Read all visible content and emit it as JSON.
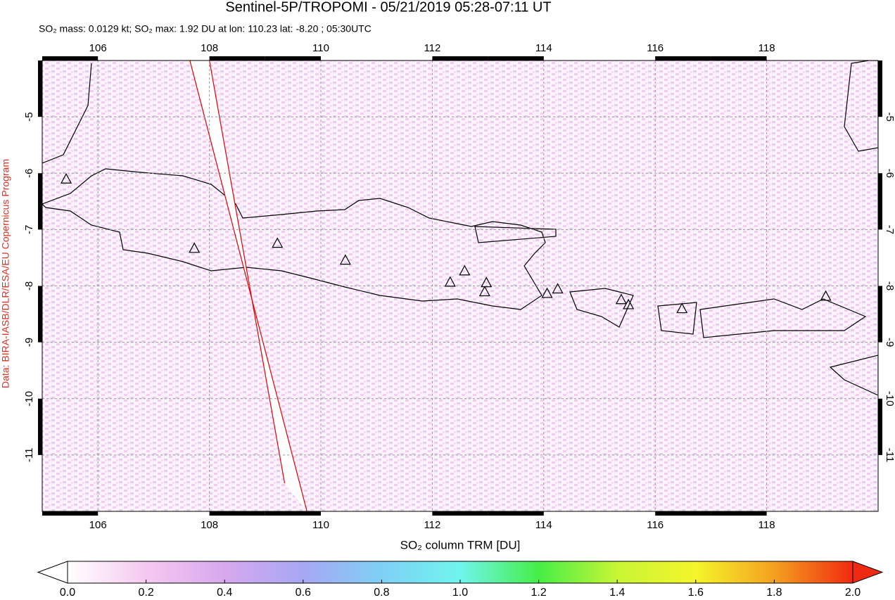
{
  "chart_data": {
    "type": "map",
    "title": "Sentinel-5P/TROPOMI - 05/21/2019 05:28-07:11 UT",
    "subtitle": "SO₂ mass: 0.0129 kt; SO₂ max: 1.92 DU at lon: 110.23 lat: -8.20 ; 05:30UTC",
    "credit": "Data: BIRA-IASB/DLR/ESA/EU Copernicus Program",
    "xlim": [
      105,
      120
    ],
    "ylim": [
      -12,
      -4
    ],
    "xticks": [
      106,
      108,
      110,
      112,
      114,
      116,
      118
    ],
    "yticks": [
      -5,
      -6,
      -7,
      -8,
      -9,
      -10,
      -11
    ],
    "grid": true,
    "volcanoes": {
      "lon": [
        107.73,
        109.22,
        110.44,
        112.32,
        112.58,
        112.97,
        112.94,
        114.06,
        114.25,
        115.39,
        115.52,
        116.48,
        119.06,
        105.43
      ],
      "lat": [
        -7.33,
        -7.24,
        -7.54,
        -7.93,
        -7.73,
        -7.94,
        -8.1,
        -8.13,
        -8.05,
        -8.24,
        -8.33,
        -8.4,
        -8.18,
        -6.1
      ]
    },
    "swath_edges": {
      "color": "#e00000",
      "lon_top": [
        107.65,
        108.0
      ],
      "lon_bottom": [
        109.75,
        109.35
      ],
      "lat_top": [
        -4,
        -4
      ],
      "lat_bottom": [
        -12,
        -11.5
      ]
    },
    "colorbar": {
      "label": "SO₂ column TRM [DU]",
      "lim": [
        0,
        2
      ],
      "colors": [
        "#ffffff",
        "#f6c8f0",
        "#d7a8ee",
        "#a7a7f3",
        "#7fd0f5",
        "#6ff5ee",
        "#46ee46",
        "#c8f535",
        "#f5f52a",
        "#f5a020",
        "#f02a10"
      ],
      "ticks": [
        {
          "value": 0,
          "label": "0.0"
        },
        {
          "value": 0.2,
          "label": "0.2"
        },
        {
          "value": 0.4,
          "label": "0.4"
        },
        {
          "value": 0.6,
          "label": "0.6"
        },
        {
          "value": 0.8,
          "label": "0.8"
        },
        {
          "value": 1,
          "label": "1.0"
        },
        {
          "value": 1.2,
          "label": "1.2"
        },
        {
          "value": 1.4,
          "label": "1.4"
        },
        {
          "value": 1.6,
          "label": "1.6"
        },
        {
          "value": 1.8,
          "label": "1.8"
        },
        {
          "value": 2,
          "label": "2.0"
        }
      ]
    }
  }
}
